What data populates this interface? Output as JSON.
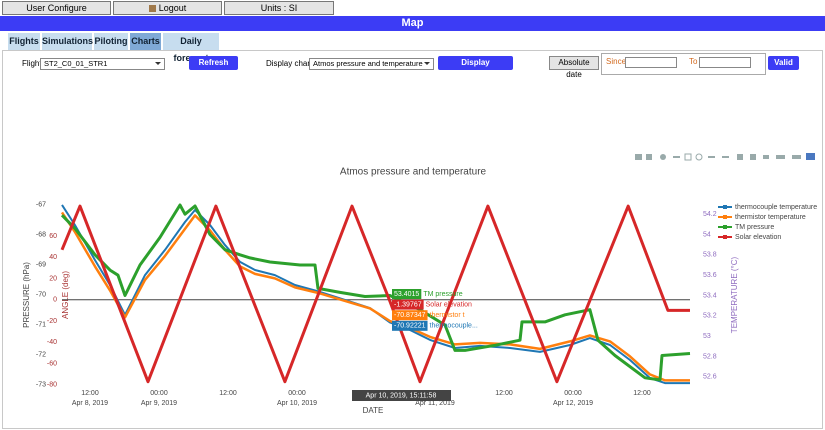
{
  "header": {
    "buttons": [
      "User Configure",
      "Logout",
      "Units : SI"
    ],
    "banner": "Map"
  },
  "tabs": [
    "Flights",
    "Simulations",
    "Piloting",
    "Charts",
    "Daily forecast"
  ],
  "active_tab_index": 3,
  "controls": {
    "flight_label": "Flight",
    "flight_value": "ST2_C0_01_STR1",
    "refresh": "Refresh",
    "display_chart_label": "Display chart",
    "display_chart_value": "Atmos pressure and temperature",
    "display": "Display",
    "absolute_date": "Absolute date",
    "since": "Since",
    "to": "To",
    "valid": "Valid"
  },
  "chart_data": {
    "type": "line",
    "title": "Atmos pressure and temperature",
    "xlabel": "DATE",
    "ylabel": "PRESSURE (hPa)",
    "y2label": "ANGLE (deg)",
    "y3label": "TEMPERATURE (°C)",
    "xlim": [
      "2019-04-08T07:08",
      "2019-04-12T20:21"
    ],
    "xticks": [
      {
        "value": "2019-04-08T12:00",
        "label": "12:00"
      },
      {
        "value": "2019-04-09T00:00",
        "label": "00:00"
      },
      {
        "value": "2019-04-09T12:00",
        "label": "12:00"
      },
      {
        "value": "2019-04-10T00:00",
        "label": "00:00"
      },
      {
        "value": "2019-04-10T12:00",
        "label": "12:00"
      },
      {
        "value": "2019-04-11T00:00",
        "label": "00:00"
      },
      {
        "value": "2019-04-11T12:00",
        "label": "12:00"
      },
      {
        "value": "2019-04-12T00:00",
        "label": "00:00"
      },
      {
        "value": "2019-04-12T12:00",
        "label": "12:00"
      }
    ],
    "x_date_labels": [
      {
        "value": "2019-04-08T12:00",
        "label": "Apr 8, 2019"
      },
      {
        "value": "2019-04-09T00:00",
        "label": "Apr 9, 2019"
      },
      {
        "value": "2019-04-10T00:00",
        "label": "Apr 10, 2019"
      },
      {
        "value": "2019-04-11T00:00",
        "label": "Apr 11, 2019"
      },
      {
        "value": "2019-04-12T00:00",
        "label": "Apr 12, 2019"
      }
    ],
    "ylim": [
      -73.07,
      -66.97
    ],
    "yticks": [
      -67,
      -68,
      -69,
      -70,
      -71,
      -72,
      -73
    ],
    "y2lim": [
      -82,
      90
    ],
    "y2ticks": [
      60,
      40,
      20,
      0,
      -20,
      -40,
      -60,
      -80
    ],
    "y3lim": [
      52.5,
      54.3
    ],
    "y3ticks": [
      54.2,
      54,
      53.8,
      53.6,
      53.4,
      53.2,
      53,
      52.8,
      52.6
    ],
    "legend": "right",
    "series": [
      {
        "name": "thermocouple temperature",
        "color": "#1f77b4",
        "axis": "y",
        "x": [
          "2019-04-08T07:08",
          "2019-04-08T09:23",
          "2019-04-08T12:52",
          "2019-04-08T15:29",
          "2019-04-08T18:05",
          "2019-04-08T21:34",
          "2019-04-09T01:03",
          "2019-04-09T04:31",
          "2019-04-09T06:16",
          "2019-04-09T08:52",
          "2019-04-09T11:29",
          "2019-04-09T14:05",
          "2019-04-09T16:42",
          "2019-04-09T20:10",
          "2019-04-09T23:39",
          "2019-04-10T04:00",
          "2019-04-10T08:21",
          "2019-04-10T12:42",
          "2019-04-10T16:10",
          "2019-04-10T19:39",
          "2019-04-10T23:08",
          "2019-04-11T03:29",
          "2019-04-11T07:50",
          "2019-04-11T13:03",
          "2019-04-11T18:16",
          "2019-04-11T23:29",
          "2019-04-12T02:57",
          "2019-04-12T06:26",
          "2019-04-12T09:55",
          "2019-04-12T13:23",
          "2019-04-12T16:00",
          "2019-04-12T20:21"
        ],
        "values": [
          -67.0,
          -67.67,
          -68.84,
          -69.67,
          -70.67,
          -69.34,
          -68.5,
          -67.57,
          -67.17,
          -67.67,
          -68.34,
          -68.9,
          -69.17,
          -69.34,
          -69.67,
          -69.9,
          -70.17,
          -70.44,
          -70.92,
          -71.17,
          -71.5,
          -71.77,
          -71.7,
          -71.77,
          -71.9,
          -71.67,
          -71.44,
          -71.67,
          -72.17,
          -72.77,
          -72.94,
          -72.94
        ]
      },
      {
        "name": "thermistor temperature",
        "color": "#ff7f0e",
        "axis": "y",
        "x": [
          "2019-04-08T07:08",
          "2019-04-08T09:23",
          "2019-04-08T12:52",
          "2019-04-08T15:29",
          "2019-04-08T18:05",
          "2019-04-08T21:34",
          "2019-04-09T01:03",
          "2019-04-09T04:31",
          "2019-04-09T06:16",
          "2019-04-09T08:52",
          "2019-04-09T11:29",
          "2019-04-09T14:05",
          "2019-04-09T16:42",
          "2019-04-09T20:10",
          "2019-04-09T23:39",
          "2019-04-10T04:00",
          "2019-04-10T08:21",
          "2019-04-10T12:42",
          "2019-04-10T16:10",
          "2019-04-10T19:39",
          "2019-04-10T23:08",
          "2019-04-11T03:29",
          "2019-04-11T07:50",
          "2019-04-11T13:03",
          "2019-04-11T18:16",
          "2019-04-11T23:29",
          "2019-04-12T02:57",
          "2019-04-12T06:26",
          "2019-04-12T09:55",
          "2019-04-12T13:23",
          "2019-04-12T16:00",
          "2019-04-12T20:21"
        ],
        "values": [
          -67.25,
          -67.9,
          -69.05,
          -69.85,
          -70.75,
          -69.5,
          -68.7,
          -67.8,
          -67.35,
          -67.85,
          -68.5,
          -69.05,
          -69.3,
          -69.45,
          -69.75,
          -69.95,
          -70.2,
          -70.45,
          -70.87,
          -71.1,
          -71.4,
          -71.65,
          -71.6,
          -71.65,
          -71.8,
          -71.55,
          -71.35,
          -71.55,
          -72.05,
          -72.65,
          -72.85,
          -72.85
        ]
      },
      {
        "name": "TM pressure",
        "color": "#2ca02c",
        "axis": "y3",
        "x": [
          "2019-04-08T07:08",
          "2019-04-08T09:23",
          "2019-04-08T12:52",
          "2019-04-08T15:29",
          "2019-04-08T16:52",
          "2019-04-08T18:05",
          "2019-04-08T20:42",
          "2019-04-09T00:10",
          "2019-04-09T03:39",
          "2019-04-09T04:31",
          "2019-04-09T06:16",
          "2019-04-09T08:52",
          "2019-04-09T11:29",
          "2019-04-09T14:05",
          "2019-04-09T15:50",
          "2019-04-09T19:18",
          "2019-04-10T00:31",
          "2019-04-10T03:08",
          "2019-04-10T03:39",
          "2019-04-10T07:29",
          "2019-04-10T11:50",
          "2019-04-10T16:10",
          "2019-04-10T21:23",
          "2019-04-11T01:44",
          "2019-04-11T03:29",
          "2019-04-11T05:13",
          "2019-04-11T10:26",
          "2019-04-11T14:47",
          "2019-04-11T15:08",
          "2019-04-11T19:08",
          "2019-04-11T22:37",
          "2019-04-12T02:57",
          "2019-04-12T04:21",
          "2019-04-12T07:18",
          "2019-04-12T12:31",
          "2019-04-12T15:08",
          "2019-04-12T15:29",
          "2019-04-12T20:21"
        ],
        "values": [
          54.19,
          54.06,
          53.8,
          53.65,
          53.6,
          53.4,
          53.7,
          53.97,
          54.29,
          54.2,
          54.28,
          54.0,
          53.85,
          53.8,
          53.77,
          53.73,
          53.7,
          53.7,
          53.47,
          53.43,
          53.39,
          53.4,
          53.26,
          53.11,
          52.86,
          52.86,
          52.91,
          52.96,
          53.14,
          53.14,
          53.21,
          53.26,
          52.96,
          52.81,
          52.59,
          52.57,
          52.81,
          52.83
        ]
      },
      {
        "name": "Solar elevation",
        "color": "#d62728",
        "axis": "y2",
        "x": [
          "2019-04-08T07:08",
          "2019-04-08T10:16",
          "2019-04-08T22:05",
          "2019-04-09T09:54",
          "2019-04-09T21:54",
          "2019-04-10T09:34",
          "2019-04-10T16:10",
          "2019-04-10T21:24",
          "2019-04-11T09:12",
          "2019-04-11T21:12",
          "2019-04-12T09:36",
          "2019-04-12T16:30",
          "2019-04-12T20:21"
        ],
        "values": [
          47,
          88,
          -77,
          88,
          -77,
          88,
          -1.4,
          -77,
          88,
          -77,
          88,
          -10,
          -10
        ]
      }
    ],
    "hover": {
      "x_label": "Apr 10, 2019, 15:11:58",
      "items": [
        {
          "value": "53.4015",
          "label": "TM pressure",
          "color": "#2ca02c"
        },
        {
          "value": "-1.39767",
          "label": "Solar elevation",
          "color": "#d62728"
        },
        {
          "value": "-70.87347",
          "label": "thermistor t",
          "color": "#ff7f0e"
        },
        {
          "value": "-70.92221",
          "label": "thermocouple...",
          "color": "#1f77b4"
        }
      ]
    }
  }
}
